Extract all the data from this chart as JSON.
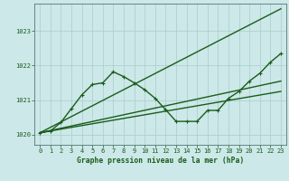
{
  "title": "Graphe pression niveau de la mer (hPa)",
  "background_color": "#cce8e8",
  "grid_color": "#aacccc",
  "line_color": "#1a5c1a",
  "spine_color": "#557777",
  "xlim": [
    -0.5,
    23.5
  ],
  "ylim": [
    1019.7,
    1023.8
  ],
  "xticks": [
    0,
    1,
    2,
    3,
    4,
    5,
    6,
    7,
    8,
    9,
    10,
    11,
    12,
    13,
    14,
    15,
    16,
    17,
    18,
    19,
    20,
    21,
    22,
    23
  ],
  "yticks": [
    1020,
    1021,
    1022,
    1023
  ],
  "series1_x": [
    0,
    1,
    2,
    3,
    4,
    5,
    6,
    7,
    8,
    9,
    10,
    11,
    12,
    13,
    14,
    15,
    16,
    17,
    18,
    19,
    20,
    21,
    22,
    23
  ],
  "series1_y": [
    1020.05,
    1020.1,
    1020.35,
    1020.75,
    1021.15,
    1021.45,
    1021.5,
    1021.82,
    1021.68,
    1021.5,
    1021.3,
    1021.05,
    1020.72,
    1020.38,
    1020.38,
    1020.38,
    1020.7,
    1020.7,
    1021.05,
    1021.25,
    1021.55,
    1021.78,
    1022.1,
    1022.35
  ],
  "series2_x": [
    0,
    23
  ],
  "series2_y": [
    1020.05,
    1023.65
  ],
  "series3_x": [
    0,
    23
  ],
  "series3_y": [
    1020.05,
    1021.55
  ],
  "series4_x": [
    0,
    23
  ],
  "series4_y": [
    1020.05,
    1021.25
  ],
  "marker_size": 2.5,
  "line_width": 1.0
}
